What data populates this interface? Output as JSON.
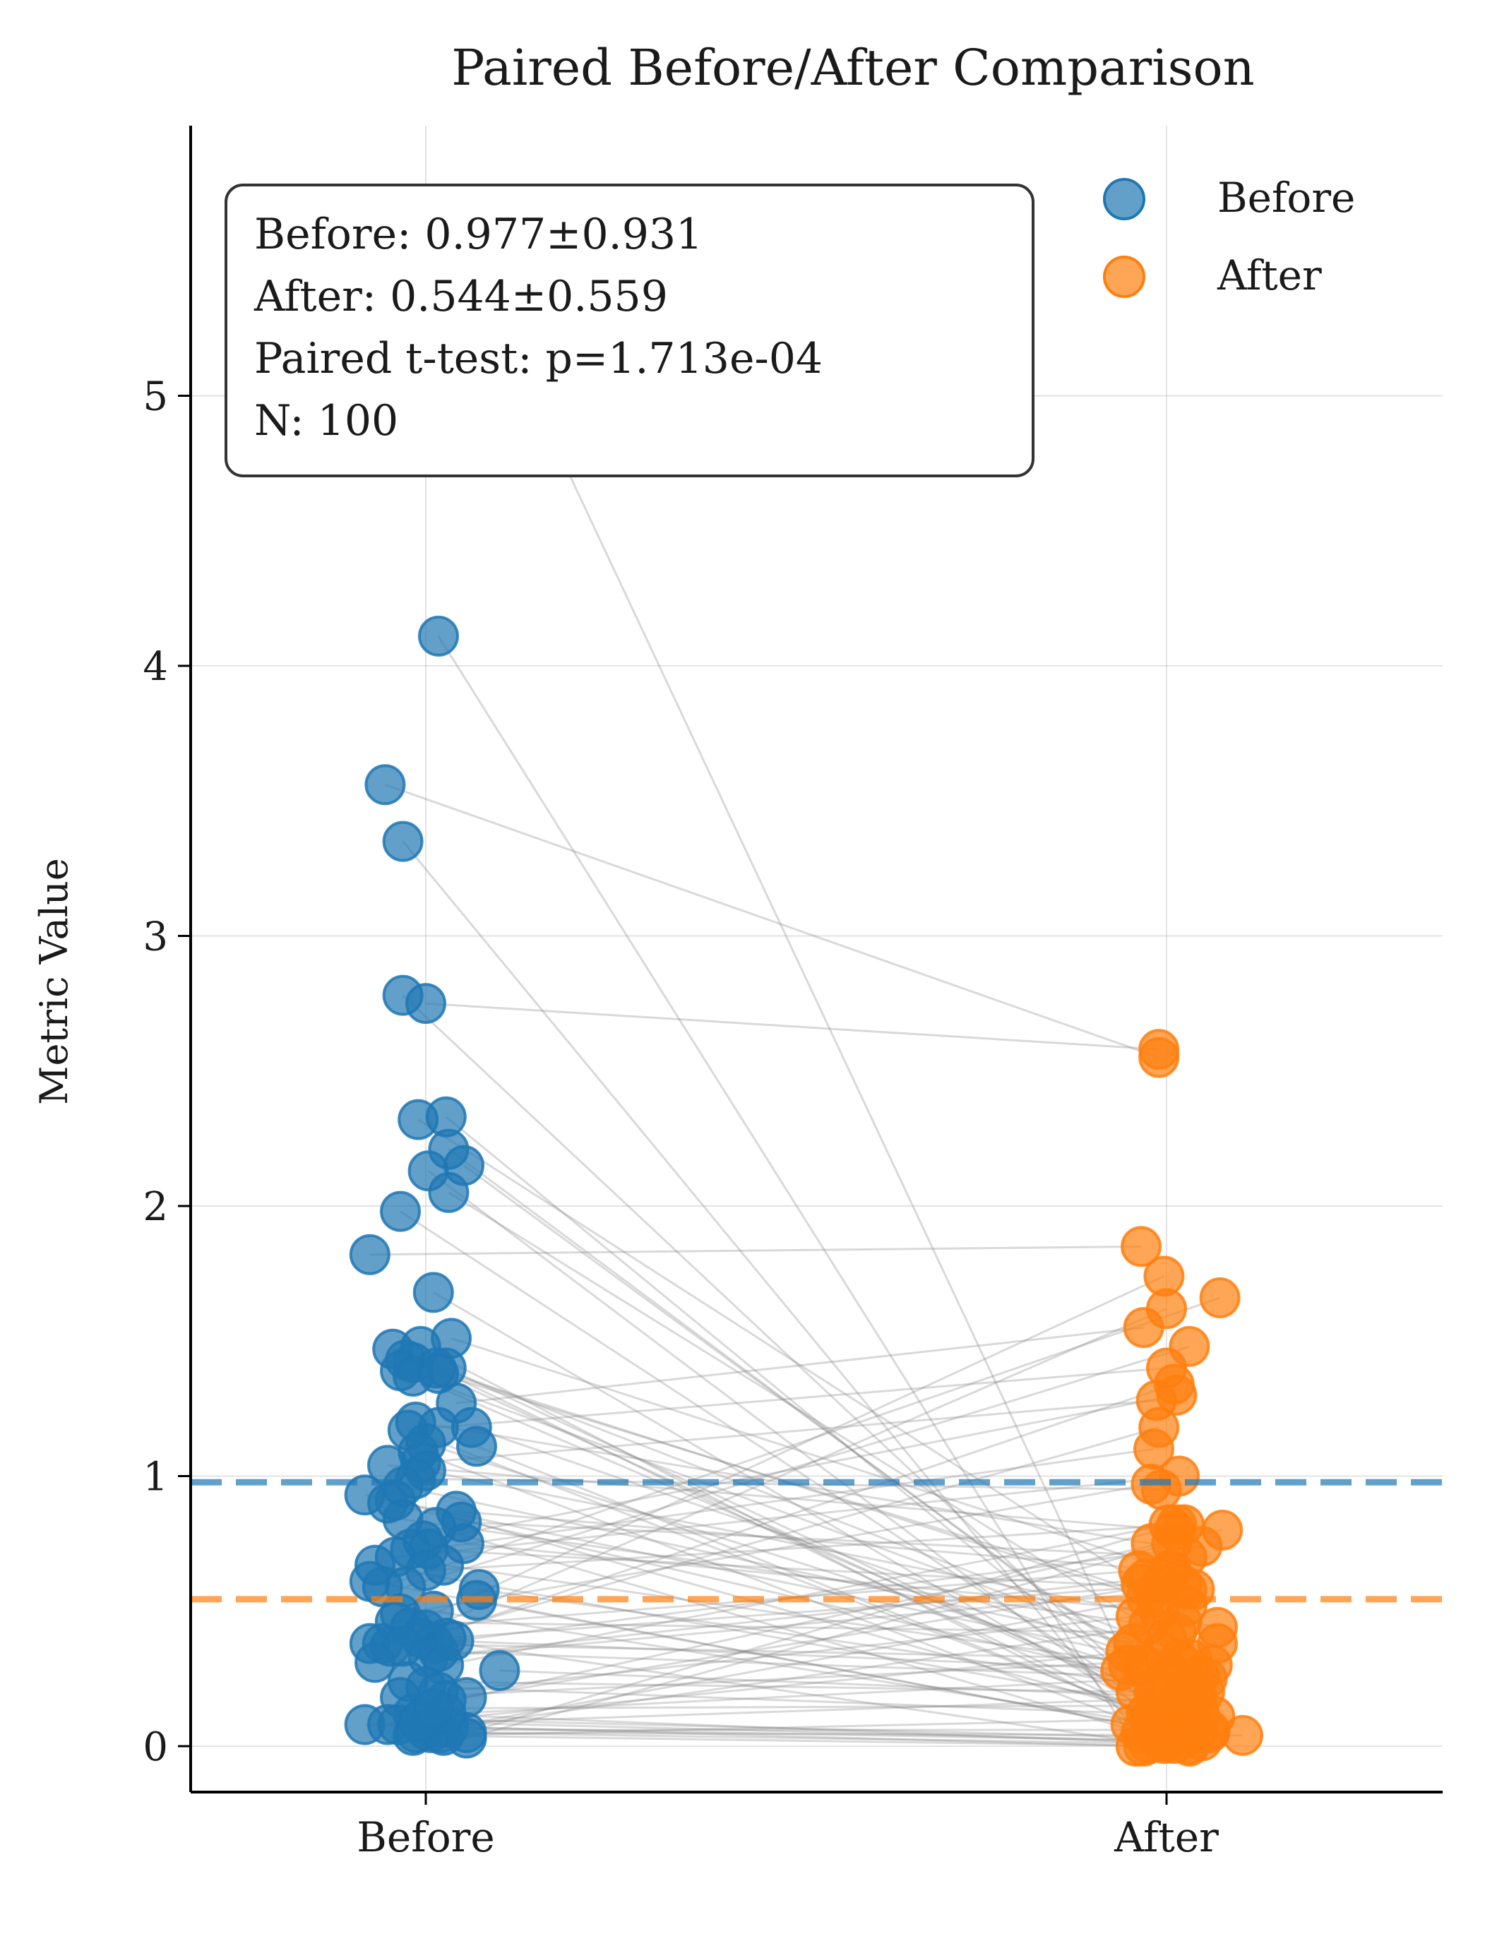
{
  "chart_data": {
    "type": "scatter",
    "title": "Paired Before/After Comparison",
    "xlabel": "",
    "ylabel": "Metric Value",
    "categories": [
      "Before",
      "After"
    ],
    "yticks": [
      0,
      1,
      2,
      3,
      4,
      5
    ],
    "ylim": [
      -0.3,
      5.95
    ],
    "grid": true,
    "legend_position": "top-right",
    "stats_box": {
      "line1": "Before: 0.977±0.931",
      "line2": "After: 0.544±0.559",
      "line3": "Paired t-test: p=1.713e-04",
      "line4": "N: 100"
    },
    "series": [
      {
        "name": "Before",
        "color": "#1f77b4",
        "mean": 0.977,
        "points": [
          {
            "offset": 0.07,
            "value": 5.7
          },
          {
            "offset": 0.05,
            "value": 4.11
          },
          {
            "offset": -0.16,
            "value": 3.56
          },
          {
            "offset": -0.09,
            "value": 3.35
          },
          {
            "offset": -0.09,
            "value": 2.78
          },
          {
            "offset": 0.0,
            "value": 2.75
          },
          {
            "offset": -0.03,
            "value": 2.32
          },
          {
            "offset": 0.08,
            "value": 2.33
          },
          {
            "offset": 0.09,
            "value": 2.21
          },
          {
            "offset": 0.01,
            "value": 2.13
          },
          {
            "offset": 0.15,
            "value": 2.15
          },
          {
            "offset": 0.09,
            "value": 2.05
          },
          {
            "offset": -0.1,
            "value": 1.98
          },
          {
            "offset": -0.22,
            "value": 1.82
          },
          {
            "offset": 0.03,
            "value": 1.68
          },
          {
            "offset": 0.1,
            "value": 1.51
          },
          {
            "offset": -0.13,
            "value": 1.47
          },
          {
            "offset": -0.08,
            "value": 1.43
          },
          {
            "offset": -0.02,
            "value": 1.48
          },
          {
            "offset": -0.05,
            "value": 1.42
          },
          {
            "offset": 0.04,
            "value": 1.4
          },
          {
            "offset": -0.1,
            "value": 1.39
          },
          {
            "offset": 0.08,
            "value": 1.4
          },
          {
            "offset": -0.05,
            "value": 1.37
          },
          {
            "offset": 0.05,
            "value": 1.38
          },
          {
            "offset": 0.12,
            "value": 1.27
          },
          {
            "offset": -0.04,
            "value": 1.2
          },
          {
            "offset": -0.07,
            "value": 1.17
          },
          {
            "offset": 0.05,
            "value": 1.18
          },
          {
            "offset": 0.18,
            "value": 1.18
          },
          {
            "offset": 0.0,
            "value": 1.12
          },
          {
            "offset": -0.03,
            "value": 1.09
          },
          {
            "offset": 0.2,
            "value": 1.11
          },
          {
            "offset": -0.02,
            "value": 1.05
          },
          {
            "offset": -0.15,
            "value": 1.04
          },
          {
            "offset": 0.0,
            "value": 1.02
          },
          {
            "offset": -0.04,
            "value": 0.99
          },
          {
            "offset": -0.09,
            "value": 0.96
          },
          {
            "offset": -0.24,
            "value": 0.93
          },
          {
            "offset": -0.12,
            "value": 0.91
          },
          {
            "offset": -0.15,
            "value": 0.9
          },
          {
            "offset": -0.09,
            "value": 0.84
          },
          {
            "offset": 0.12,
            "value": 0.87
          },
          {
            "offset": 0.14,
            "value": 0.83
          },
          {
            "offset": 0.04,
            "value": 0.81
          },
          {
            "offset": -0.01,
            "value": 0.76
          },
          {
            "offset": 0.15,
            "value": 0.75
          },
          {
            "offset": -0.06,
            "value": 0.73
          },
          {
            "offset": 0.01,
            "value": 0.73
          },
          {
            "offset": -0.12,
            "value": 0.7
          },
          {
            "offset": -0.2,
            "value": 0.67
          },
          {
            "offset": 0.07,
            "value": 0.67
          },
          {
            "offset": 0.0,
            "value": 0.65
          },
          {
            "offset": -0.22,
            "value": 0.61
          },
          {
            "offset": -0.17,
            "value": 0.59
          },
          {
            "offset": -0.08,
            "value": 0.59
          },
          {
            "offset": 0.21,
            "value": 0.58
          },
          {
            "offset": 0.2,
            "value": 0.54
          },
          {
            "offset": -0.1,
            "value": 0.49
          },
          {
            "offset": 0.03,
            "value": 0.5
          },
          {
            "offset": -0.12,
            "value": 0.46
          },
          {
            "offset": -0.06,
            "value": 0.44
          },
          {
            "offset": 0.0,
            "value": 0.43
          },
          {
            "offset": -0.02,
            "value": 0.4
          },
          {
            "offset": 0.08,
            "value": 0.4
          },
          {
            "offset": 0.03,
            "value": 0.38
          },
          {
            "offset": -0.22,
            "value": 0.38
          },
          {
            "offset": -0.17,
            "value": 0.38
          },
          {
            "offset": -0.14,
            "value": 0.37
          },
          {
            "offset": -0.09,
            "value": 0.37
          },
          {
            "offset": 0.05,
            "value": 0.35
          },
          {
            "offset": 0.01,
            "value": 0.33
          },
          {
            "offset": -0.2,
            "value": 0.31
          },
          {
            "offset": 0.07,
            "value": 0.3
          },
          {
            "offset": 0.29,
            "value": 0.28
          },
          {
            "offset": -0.07,
            "value": 0.24
          },
          {
            "offset": 0.0,
            "value": 0.22
          },
          {
            "offset": 0.05,
            "value": 0.2
          },
          {
            "offset": -0.1,
            "value": 0.18
          },
          {
            "offset": 0.16,
            "value": 0.18
          },
          {
            "offset": 0.08,
            "value": 0.17
          },
          {
            "offset": -0.05,
            "value": 0.12
          },
          {
            "offset": -0.02,
            "value": 0.1
          },
          {
            "offset": -0.24,
            "value": 0.08
          },
          {
            "offset": -0.15,
            "value": 0.08
          },
          {
            "offset": -0.11,
            "value": 0.08
          },
          {
            "offset": 0.04,
            "value": 0.07
          },
          {
            "offset": 0.09,
            "value": 0.07
          },
          {
            "offset": -0.04,
            "value": 0.05
          },
          {
            "offset": 0.0,
            "value": 0.06
          },
          {
            "offset": 0.02,
            "value": 0.05
          },
          {
            "offset": 0.06,
            "value": 0.05
          },
          {
            "offset": 0.16,
            "value": 0.05
          },
          {
            "offset": -0.05,
            "value": 0.04
          },
          {
            "offset": 0.07,
            "value": 0.04
          },
          {
            "offset": 0.16,
            "value": 0.03
          },
          {
            "offset": 0.08,
            "value": 0.12
          },
          {
            "offset": -0.03,
            "value": 0.09
          },
          {
            "offset": 0.03,
            "value": 0.14
          },
          {
            "offset": 0.11,
            "value": 0.39
          }
        ]
      },
      {
        "name": "After",
        "color": "#ff7f0e",
        "mean": 0.544,
        "points": [
          {
            "offset": -0.15,
            "value": 0.3
          },
          {
            "offset": -0.12,
            "value": 0.0
          },
          {
            "offset": -0.03,
            "value": 2.55
          },
          {
            "offset": -0.14,
            "value": 0.08
          },
          {
            "offset": 0.04,
            "value": 0.1
          },
          {
            "offset": -0.03,
            "value": 2.58
          },
          {
            "offset": -0.1,
            "value": 0.6
          },
          {
            "offset": -0.18,
            "value": 0.28
          },
          {
            "offset": -0.1,
            "value": 0.3
          },
          {
            "offset": 0.03,
            "value": 0.05
          },
          {
            "offset": 0.06,
            "value": 0.2
          },
          {
            "offset": 0.0,
            "value": 0.4
          },
          {
            "offset": -0.04,
            "value": 0.15
          },
          {
            "offset": -0.1,
            "value": 1.85
          },
          {
            "offset": -0.05,
            "value": 0.12
          },
          {
            "offset": 0.02,
            "value": 0.65
          },
          {
            "offset": 0.18,
            "value": 0.3
          },
          {
            "offset": -0.08,
            "value": 0.55
          },
          {
            "offset": -0.06,
            "value": 0.08
          },
          {
            "offset": 0.1,
            "value": 0.1
          },
          {
            "offset": 0.14,
            "value": 0.02
          },
          {
            "offset": -0.02,
            "value": 0.35
          },
          {
            "offset": -0.12,
            "value": 0.2
          },
          {
            "offset": 0.05,
            "value": 0.15
          },
          {
            "offset": 0.08,
            "value": 0.52
          },
          {
            "offset": -0.09,
            "value": 1.55
          },
          {
            "offset": -0.06,
            "value": 0.75
          },
          {
            "offset": 0.12,
            "value": 0.05
          },
          {
            "offset": 0.0,
            "value": 1.4
          },
          {
            "offset": -0.16,
            "value": 0.35
          },
          {
            "offset": -0.01,
            "value": 0.25
          },
          {
            "offset": 0.09,
            "value": 0.01
          },
          {
            "offset": -0.08,
            "value": 0.12
          },
          {
            "offset": -0.04,
            "value": 1.28
          },
          {
            "offset": 0.03,
            "value": 0.8
          },
          {
            "offset": 0.2,
            "value": 0.44
          },
          {
            "offset": -0.02,
            "value": 0.95
          },
          {
            "offset": -0.13,
            "value": 0.38
          },
          {
            "offset": 0.06,
            "value": 0.3
          },
          {
            "offset": 0.1,
            "value": 0.08
          },
          {
            "offset": 0.15,
            "value": 0.2
          },
          {
            "offset": -0.07,
            "value": 0.45
          },
          {
            "offset": 0.01,
            "value": 0.65
          },
          {
            "offset": 0.08,
            "value": 0.7
          },
          {
            "offset": -0.1,
            "value": 0.05
          },
          {
            "offset": 0.04,
            "value": 1.3
          },
          {
            "offset": -0.03,
            "value": 0.5
          },
          {
            "offset": 0.11,
            "value": 0.58
          },
          {
            "offset": -0.05,
            "value": 1.1
          },
          {
            "offset": 0.05,
            "value": 1.0
          },
          {
            "offset": 0.13,
            "value": 0.12
          },
          {
            "offset": -0.09,
            "value": 0.3
          },
          {
            "offset": 0.07,
            "value": 0.82
          },
          {
            "offset": -0.02,
            "value": 0.06
          },
          {
            "offset": 0.21,
            "value": 1.66
          },
          {
            "offset": 0.09,
            "value": 1.48
          },
          {
            "offset": -0.04,
            "value": 0.22
          },
          {
            "offset": 0.02,
            "value": 0.05
          },
          {
            "offset": -0.06,
            "value": 0.97
          },
          {
            "offset": 0.17,
            "value": 0.05
          },
          {
            "offset": 0.04,
            "value": 0.42
          },
          {
            "offset": -0.11,
            "value": 0.65
          },
          {
            "offset": 0.0,
            "value": 1.62
          },
          {
            "offset": -0.07,
            "value": 0.01
          },
          {
            "offset": 0.06,
            "value": 0.6
          },
          {
            "offset": 0.14,
            "value": 0.74
          },
          {
            "offset": -0.01,
            "value": 1.74
          },
          {
            "offset": 0.1,
            "value": 0.32
          },
          {
            "offset": -0.03,
            "value": 1.18
          },
          {
            "offset": 0.03,
            "value": 1.34
          },
          {
            "offset": 0.16,
            "value": 0.25
          },
          {
            "offset": -0.08,
            "value": 0.62
          },
          {
            "offset": 0.08,
            "value": 0.58
          },
          {
            "offset": 0.01,
            "value": 0.82
          },
          {
            "offset": 0.12,
            "value": 0.18
          },
          {
            "offset": -0.05,
            "value": 0.2
          },
          {
            "offset": 0.19,
            "value": 0.11
          },
          {
            "offset": -0.12,
            "value": 0.48
          },
          {
            "offset": 0.05,
            "value": 0.32
          },
          {
            "offset": 0.22,
            "value": 0.8
          },
          {
            "offset": -0.02,
            "value": 0.6
          },
          {
            "offset": 0.03,
            "value": 0.01
          },
          {
            "offset": 0.07,
            "value": 0.03
          },
          {
            "offset": -0.09,
            "value": 0.0
          },
          {
            "offset": 0.2,
            "value": 0.38
          },
          {
            "offset": 0.11,
            "value": 0.18
          },
          {
            "offset": 0.0,
            "value": 0.02
          },
          {
            "offset": -0.04,
            "value": 0.55
          },
          {
            "offset": 0.06,
            "value": 0.46
          },
          {
            "offset": 0.17,
            "value": 0.06
          },
          {
            "offset": 0.3,
            "value": 0.04
          },
          {
            "offset": -0.01,
            "value": 0.01
          },
          {
            "offset": 0.04,
            "value": 0.82
          },
          {
            "offset": 0.09,
            "value": 0.0
          },
          {
            "offset": -0.06,
            "value": 0.1
          },
          {
            "offset": 0.02,
            "value": 0.75
          },
          {
            "offset": 0.13,
            "value": 0.26
          },
          {
            "offset": -0.03,
            "value": 0.02
          },
          {
            "offset": 0.08,
            "value": 0.15
          },
          {
            "offset": 0.01,
            "value": 0.28
          }
        ]
      }
    ]
  }
}
